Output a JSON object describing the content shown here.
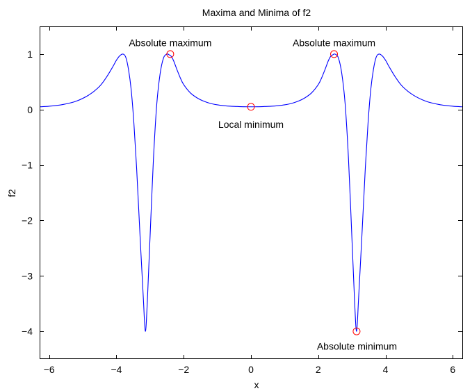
{
  "chart_data": {
    "type": "line",
    "title": "Maxima and Minima of f2",
    "xlabel": "x",
    "ylabel": "f2",
    "xlim": [
      -6.283,
      6.283
    ],
    "ylim": [
      -4.5,
      1.5
    ],
    "xticks": [
      -6,
      -4,
      -2,
      0,
      2,
      4,
      6
    ],
    "xtick_labels": [
      "−6",
      "−4",
      "−2",
      "0",
      "2",
      "4",
      "6"
    ],
    "yticks": [
      1,
      0,
      -1,
      -2,
      -3,
      -4
    ],
    "ytick_labels": [
      "1",
      "0",
      "−1",
      "−2",
      "−3",
      "−4"
    ],
    "grid": false,
    "series": [
      {
        "color": "#0000ff",
        "x": [
          -6.283,
          -6.0,
          -5.6,
          -5.2,
          -4.8,
          -4.5,
          -4.3,
          -4.1,
          -4.0,
          -3.9,
          -3.8,
          -3.72,
          -3.64,
          -3.56,
          -3.48,
          -3.4,
          -3.3,
          -3.2,
          -3.14,
          -3.08,
          -3.0,
          -2.9,
          -2.8,
          -2.7,
          -2.6,
          -2.5,
          -2.44,
          -2.37,
          -2.3,
          -2.2,
          -2.1,
          -2.0,
          -1.8,
          -1.6,
          -1.4,
          -1.2,
          -1.0,
          -0.8,
          -0.6,
          -0.4,
          -0.2,
          0.0,
          0.2,
          0.4,
          0.6,
          0.8,
          1.0,
          1.2,
          1.4,
          1.6,
          1.8,
          2.0,
          2.1,
          2.2,
          2.3,
          2.37,
          2.44,
          2.5,
          2.6,
          2.7,
          2.8,
          2.9,
          3.0,
          3.08,
          3.14,
          3.2,
          3.3,
          3.4,
          3.48,
          3.56,
          3.64,
          3.72,
          3.8,
          3.9,
          4.0,
          4.1,
          4.3,
          4.5,
          4.8,
          5.2,
          5.6,
          6.0,
          6.283
        ],
        "y": [
          0.05,
          0.06,
          0.09,
          0.15,
          0.27,
          0.42,
          0.58,
          0.78,
          0.89,
          0.97,
          1.0,
          0.94,
          0.72,
          0.35,
          -0.25,
          -1.05,
          -2.25,
          -3.4,
          -4.0,
          -3.45,
          -2.3,
          -0.9,
          0.1,
          0.65,
          0.93,
          1.0,
          0.99,
          0.96,
          0.88,
          0.72,
          0.57,
          0.45,
          0.3,
          0.21,
          0.15,
          0.11,
          0.085,
          0.07,
          0.06,
          0.055,
          0.051,
          0.05,
          0.051,
          0.055,
          0.06,
          0.07,
          0.085,
          0.11,
          0.15,
          0.21,
          0.3,
          0.45,
          0.57,
          0.72,
          0.88,
          0.96,
          0.99,
          1.0,
          0.93,
          0.65,
          0.1,
          -0.9,
          -2.3,
          -3.45,
          -4.0,
          -3.4,
          -2.25,
          -1.05,
          -0.25,
          0.35,
          0.72,
          0.94,
          1.0,
          0.97,
          0.89,
          0.78,
          0.58,
          0.42,
          0.27,
          0.15,
          0.09,
          0.06,
          0.05
        ]
      }
    ],
    "markers": [
      {
        "x": -2.4,
        "y": 1.0
      },
      {
        "x": 2.47,
        "y": 1.0
      },
      {
        "x": 0.0,
        "y": 0.05
      },
      {
        "x": 3.14,
        "y": -4.0
      }
    ],
    "marker_color": "#ff0000",
    "annotations": [
      {
        "text": "Absolute maximum",
        "x": -2.4,
        "y": 1.14
      },
      {
        "text": "Absolute maximum",
        "x": 2.47,
        "y": 1.14
      },
      {
        "text": "Local minimum",
        "x": 0.0,
        "y": -0.33
      },
      {
        "text": "Absolute minimum",
        "x": 3.15,
        "y": -4.33
      }
    ]
  }
}
